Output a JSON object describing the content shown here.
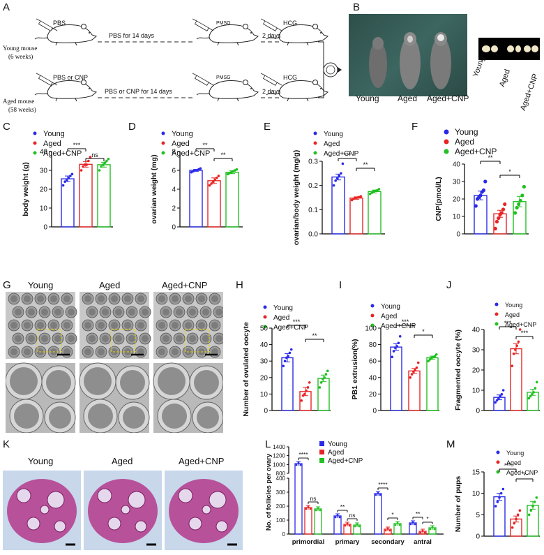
{
  "panel_letters": [
    "A",
    "B",
    "C",
    "D",
    "E",
    "F",
    "G",
    "H",
    "I",
    "J",
    "K",
    "L",
    "M"
  ],
  "colors": {
    "young": "#2a2ae8",
    "aged": "#e82424",
    "cnp": "#22c022",
    "scale": "#000000",
    "dash": "#e8d200",
    "he_pink": "#b43a8c"
  },
  "schematic": {
    "young_label": "Young mouse",
    "young_age": "(6 weeks)",
    "aged_label": "Aged mouse",
    "aged_age": "(58 weeks)",
    "young_inject": "PBS",
    "aged_inject": "PBS or CNP",
    "young_treat": "PBS for 14 days",
    "aged_treat": "PBS or CNP for 14 days",
    "pmsg": "PMSG",
    "hcg": "HCG",
    "interval": "2 days"
  },
  "photo_b": {
    "mice_labels": [
      "Young",
      "Aged",
      "Aged+CNP"
    ],
    "ovary_labels": [
      "Young",
      "Aged",
      "Aged+CNP"
    ]
  },
  "photo_g": {
    "labels": [
      "Young",
      "Aged",
      "Aged+CNP"
    ]
  },
  "photo_k": {
    "labels": [
      "Young",
      "Aged",
      "Aged+CNP"
    ]
  },
  "legend_labels": [
    "Young",
    "Aged",
    "Aged+CNP"
  ],
  "chart_data": [
    {
      "panel": "C",
      "type": "bar",
      "categories": [
        "Young",
        "Aged",
        "Aged+CNP"
      ],
      "values": [
        25.5,
        33.2,
        33.0
      ],
      "errors": [
        1.5,
        1.5,
        1.3
      ],
      "points": [
        [
          22,
          24,
          25,
          26,
          27,
          28
        ],
        [
          30,
          32,
          33,
          33,
          35,
          37
        ],
        [
          30,
          32,
          33,
          34,
          35,
          36
        ]
      ],
      "ylabel": "body weight (g)",
      "ylim": [
        0,
        40
      ],
      "yticks": [
        "0",
        "10",
        "20",
        "30",
        "40"
      ],
      "sig": [
        {
          "from": 0,
          "to": 1,
          "label": "***"
        },
        {
          "from": 1,
          "to": 2,
          "label": "ns"
        }
      ]
    },
    {
      "panel": "D",
      "type": "bar",
      "categories": [
        "Young",
        "Aged",
        "Aged+CNP"
      ],
      "values": [
        6.0,
        4.9,
        5.8
      ],
      "errors": [
        0.1,
        0.3,
        0.15
      ],
      "points": [
        [
          5.8,
          5.9,
          6.0,
          6.0,
          6.1,
          6.2
        ],
        [
          4.4,
          4.6,
          4.8,
          5.0,
          5.2,
          5.4
        ],
        [
          5.6,
          5.7,
          5.8,
          5.9,
          6.0,
          6.1
        ]
      ],
      "ylabel": "ovarian weight (mg)",
      "ylim": [
        0,
        8
      ],
      "yticks": [
        "0",
        "2",
        "4",
        "6",
        "8"
      ],
      "sig": [
        {
          "from": 0,
          "to": 1,
          "label": "**"
        },
        {
          "from": 1,
          "to": 2,
          "label": "**"
        }
      ]
    },
    {
      "panel": "E",
      "type": "bar",
      "categories": [
        "Young",
        "Aged",
        "Aged+CNP"
      ],
      "values": [
        0.235,
        0.148,
        0.175
      ],
      "errors": [
        0.012,
        0.005,
        0.006
      ],
      "points": [
        [
          0.2,
          0.22,
          0.23,
          0.24,
          0.25,
          0.29
        ],
        [
          0.14,
          0.145,
          0.148,
          0.15,
          0.152,
          0.155
        ],
        [
          0.165,
          0.17,
          0.175,
          0.178,
          0.18,
          0.185
        ]
      ],
      "ylabel": "ovarian/body weight (mg/g)",
      "ylim": [
        0,
        0.3
      ],
      "yticks": [
        "0.0",
        "0.1",
        "0.2",
        "0.3"
      ],
      "sig": [
        {
          "from": 0,
          "to": 1,
          "label": "***"
        },
        {
          "from": 1,
          "to": 2,
          "label": "**"
        }
      ]
    },
    {
      "panel": "F",
      "type": "bar",
      "categories": [
        "Young",
        "Aged",
        "Aged+CNP"
      ],
      "values": [
        22,
        11.5,
        18.5
      ],
      "errors": [
        2.5,
        2.0,
        3.0
      ],
      "points": [
        [
          16,
          20,
          21,
          22,
          24,
          25,
          30
        ],
        [
          3,
          7,
          9,
          11,
          12,
          14,
          17
        ],
        [
          12,
          15,
          17,
          19,
          22,
          27
        ]
      ],
      "ylabel": "CNP(pmol/L)",
      "ylim": [
        0,
        40
      ],
      "yticks": [
        "0",
        "10",
        "20",
        "30",
        "40"
      ],
      "sig": [
        {
          "from": 0,
          "to": 1,
          "label": "**"
        },
        {
          "from": 1,
          "to": 2,
          "label": "*"
        }
      ]
    },
    {
      "panel": "H",
      "type": "bar",
      "categories": [
        "Young",
        "Aged",
        "Aged+CNP"
      ],
      "values": [
        32,
        11.5,
        19.5
      ],
      "errors": [
        2.5,
        2.5,
        2.0
      ],
      "points": [
        [
          27,
          30,
          32,
          33,
          35,
          37
        ],
        [
          6,
          9,
          10,
          12,
          14,
          17
        ],
        [
          14,
          17,
          19,
          20,
          22,
          24
        ]
      ],
      "ylabel": "Number of ovulated oocyte",
      "ylim": [
        0,
        50
      ],
      "yticks": [
        "0",
        "10",
        "20",
        "30",
        "40",
        "50"
      ],
      "sig": [
        {
          "from": 0,
          "to": 1,
          "label": "***"
        },
        {
          "from": 1,
          "to": 2,
          "label": "**"
        }
      ]
    },
    {
      "panel": "I",
      "type": "bar",
      "categories": [
        "Young",
        "Aged",
        "Aged+CNP"
      ],
      "values": [
        77,
        48,
        64
      ],
      "errors": [
        4,
        3,
        2
      ],
      "points": [
        [
          65,
          72,
          76,
          78,
          82,
          90
        ],
        [
          40,
          44,
          47,
          49,
          52,
          58
        ],
        [
          60,
          62,
          64,
          65,
          66,
          68
        ]
      ],
      "ylabel": "PB1 extrusion(%)",
      "ylim": [
        0,
        100
      ],
      "yticks": [
        "0",
        "20",
        "40",
        "60",
        "80",
        "100"
      ],
      "sig": [
        {
          "from": 0,
          "to": 1,
          "label": "***"
        },
        {
          "from": 1,
          "to": 2,
          "label": "*"
        }
      ]
    },
    {
      "panel": "J",
      "type": "bar",
      "categories": [
        "Young",
        "Aged",
        "Aged+CNP"
      ],
      "values": [
        6.5,
        30.5,
        9
      ],
      "errors": [
        1.2,
        2.5,
        1.5
      ],
      "points": [
        [
          4,
          5,
          6,
          7,
          8,
          10
        ],
        [
          22,
          28,
          30,
          32,
          34,
          40
        ],
        [
          6,
          7,
          8,
          9,
          11,
          14
        ]
      ],
      "ylabel": "Fragmented oocyte (%)",
      "ylim": [
        0,
        40
      ],
      "yticks": [
        "0",
        "10",
        "20",
        "30",
        "40"
      ],
      "sig": [
        {
          "from": 0,
          "to": 1,
          "label": "***"
        },
        {
          "from": 1,
          "to": 2,
          "label": "***"
        }
      ]
    },
    {
      "panel": "L",
      "type": "bar",
      "categories": [
        "primordial",
        "primary",
        "secondary",
        "antral"
      ],
      "series": [
        {
          "name": "Young",
          "values": [
            1020,
            130,
            290,
            80
          ]
        },
        {
          "name": "Aged",
          "values": [
            190,
            70,
            35,
            20
          ]
        },
        {
          "name": "Aged+CNP",
          "values": [
            180,
            65,
            75,
            45
          ]
        }
      ],
      "ylabel": "No. of follicles per ovary",
      "yticks": [
        "0",
        "100",
        "200",
        "300",
        "400",
        "800",
        "1000",
        "1200",
        "1400"
      ],
      "sig": [
        {
          "group": 0,
          "from": 0,
          "to": 1,
          "label": "****"
        },
        {
          "group": 0,
          "from": 1,
          "to": 2,
          "label": "ns"
        },
        {
          "group": 1,
          "from": 0,
          "to": 1,
          "label": "**"
        },
        {
          "group": 1,
          "from": 1,
          "to": 2,
          "label": "ns"
        },
        {
          "group": 2,
          "from": 0,
          "to": 1,
          "label": "****"
        },
        {
          "group": 2,
          "from": 1,
          "to": 2,
          "label": "*"
        },
        {
          "group": 3,
          "from": 0,
          "to": 1,
          "label": "**"
        },
        {
          "group": 3,
          "from": 1,
          "to": 2,
          "label": "*"
        }
      ]
    },
    {
      "panel": "M",
      "type": "bar",
      "categories": [
        "Young",
        "Aged",
        "Aged+CNP"
      ],
      "values": [
        9.2,
        4.0,
        7.2
      ],
      "errors": [
        0.8,
        0.7,
        0.9
      ],
      "points": [
        [
          7,
          8,
          9,
          10,
          11
        ],
        [
          2,
          3,
          4,
          5,
          6
        ],
        [
          5,
          6,
          7,
          8,
          9
        ]
      ],
      "ylabel": "Number of pups",
      "ylim": [
        0,
        15
      ],
      "yticks": [
        "0",
        "5",
        "10",
        "15"
      ],
      "sig": [
        {
          "from": 0,
          "to": 1,
          "label": "***"
        },
        {
          "from": 1,
          "to": 2,
          "label": "*"
        }
      ]
    }
  ]
}
